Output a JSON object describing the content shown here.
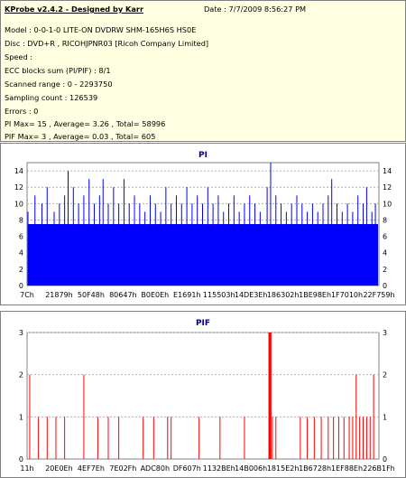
{
  "header": {
    "title": "KProbe v2.4.2 - Designed by Karr",
    "date": "Date : 7/7/2009 8:56:27 PM",
    "lines": [
      "Model : 0-0-1-0 LITE-ON DVDRW SHM-165H6S HS0E",
      "Disc : DVD+R , RICOHJPNR03 [Ricoh Company Limited]",
      "Speed :",
      "ECC blocks sum (PI/PIF) : 8/1",
      "Scanned range : 0 - 2293750",
      "Sampling count : 126539",
      "Errors : 0",
      "PI Max= 15 , Average= 3.26 , Total= 58996",
      "PIF Max= 3 , Average= 0.03 , Total= 605"
    ]
  },
  "colors": {
    "bar": "#0000ff",
    "pif_bar": "#ff0000",
    "title": "#000080",
    "grid": "#808080",
    "info_bg": "#ffffe1"
  },
  "chart_data": [
    {
      "type": "bar",
      "title": "PI",
      "ylim": [
        0,
        15
      ],
      "yticks": [
        "0",
        "2",
        "4",
        "6",
        "8",
        "10",
        "12",
        "14"
      ],
      "xticks": [
        "7Ch",
        "21879h",
        "50F48h",
        "80647h",
        "B0E0Eh",
        "E1691h",
        "115503h",
        "14DE3Eh",
        "186302h",
        "1BE98Eh",
        "1F7010h",
        "22F759h"
      ],
      "grid": true,
      "baseline": 7.5,
      "spikes": [
        {
          "x": 0.0,
          "y": 9
        },
        {
          "x": 0.02,
          "y": 11
        },
        {
          "x": 0.04,
          "y": 10
        },
        {
          "x": 0.055,
          "y": 12
        },
        {
          "x": 0.075,
          "y": 9
        },
        {
          "x": 0.09,
          "y": 10
        },
        {
          "x": 0.105,
          "y": 11
        },
        {
          "x": 0.115,
          "y": 14
        },
        {
          "x": 0.13,
          "y": 12
        },
        {
          "x": 0.145,
          "y": 10
        },
        {
          "x": 0.16,
          "y": 11
        },
        {
          "x": 0.175,
          "y": 13
        },
        {
          "x": 0.19,
          "y": 10
        },
        {
          "x": 0.205,
          "y": 11
        },
        {
          "x": 0.215,
          "y": 13
        },
        {
          "x": 0.23,
          "y": 10
        },
        {
          "x": 0.245,
          "y": 12
        },
        {
          "x": 0.26,
          "y": 10
        },
        {
          "x": 0.275,
          "y": 13
        },
        {
          "x": 0.29,
          "y": 10
        },
        {
          "x": 0.305,
          "y": 11
        },
        {
          "x": 0.32,
          "y": 10
        },
        {
          "x": 0.335,
          "y": 9
        },
        {
          "x": 0.35,
          "y": 11
        },
        {
          "x": 0.365,
          "y": 10
        },
        {
          "x": 0.38,
          "y": 9
        },
        {
          "x": 0.395,
          "y": 12
        },
        {
          "x": 0.41,
          "y": 10
        },
        {
          "x": 0.425,
          "y": 11
        },
        {
          "x": 0.44,
          "y": 10
        },
        {
          "x": 0.455,
          "y": 12
        },
        {
          "x": 0.47,
          "y": 10
        },
        {
          "x": 0.485,
          "y": 11
        },
        {
          "x": 0.5,
          "y": 10
        },
        {
          "x": 0.515,
          "y": 12
        },
        {
          "x": 0.53,
          "y": 10
        },
        {
          "x": 0.545,
          "y": 11
        },
        {
          "x": 0.56,
          "y": 9
        },
        {
          "x": 0.575,
          "y": 10
        },
        {
          "x": 0.59,
          "y": 11
        },
        {
          "x": 0.605,
          "y": 9
        },
        {
          "x": 0.62,
          "y": 10
        },
        {
          "x": 0.635,
          "y": 11
        },
        {
          "x": 0.65,
          "y": 10
        },
        {
          "x": 0.665,
          "y": 9
        },
        {
          "x": 0.685,
          "y": 12
        },
        {
          "x": 0.695,
          "y": 15
        },
        {
          "x": 0.71,
          "y": 11
        },
        {
          "x": 0.725,
          "y": 10
        },
        {
          "x": 0.74,
          "y": 9
        },
        {
          "x": 0.755,
          "y": 10
        },
        {
          "x": 0.77,
          "y": 11
        },
        {
          "x": 0.785,
          "y": 10
        },
        {
          "x": 0.8,
          "y": 9
        },
        {
          "x": 0.815,
          "y": 10
        },
        {
          "x": 0.83,
          "y": 9
        },
        {
          "x": 0.845,
          "y": 10
        },
        {
          "x": 0.86,
          "y": 11
        },
        {
          "x": 0.87,
          "y": 13
        },
        {
          "x": 0.885,
          "y": 10
        },
        {
          "x": 0.9,
          "y": 9
        },
        {
          "x": 0.915,
          "y": 10
        },
        {
          "x": 0.93,
          "y": 9
        },
        {
          "x": 0.945,
          "y": 11
        },
        {
          "x": 0.96,
          "y": 10
        },
        {
          "x": 0.97,
          "y": 12
        },
        {
          "x": 0.985,
          "y": 9
        },
        {
          "x": 0.995,
          "y": 10
        }
      ]
    },
    {
      "type": "bar",
      "title": "PIF",
      "ylim": [
        0,
        3
      ],
      "yticks": [
        "0",
        "1",
        "2",
        "3"
      ],
      "xticks": [
        "11h",
        "20E0Eh",
        "4EF7Eh",
        "7E02Fh",
        "ADC80h",
        "DF607h",
        "1132BEh",
        "14B006h",
        "1815E2h",
        "1B6728h",
        "1EF88Eh",
        "226B1Fh"
      ],
      "grid": true,
      "spikes": [
        {
          "x": 0.005,
          "y": 2
        },
        {
          "x": 0.03,
          "y": 1
        },
        {
          "x": 0.055,
          "y": 1
        },
        {
          "x": 0.08,
          "y": 1
        },
        {
          "x": 0.105,
          "y": 1
        },
        {
          "x": 0.16,
          "y": 2
        },
        {
          "x": 0.2,
          "y": 1
        },
        {
          "x": 0.23,
          "y": 1
        },
        {
          "x": 0.26,
          "y": 1
        },
        {
          "x": 0.33,
          "y": 1
        },
        {
          "x": 0.36,
          "y": 1
        },
        {
          "x": 0.4,
          "y": 1
        },
        {
          "x": 0.41,
          "y": 1
        },
        {
          "x": 0.49,
          "y": 1
        },
        {
          "x": 0.55,
          "y": 1
        },
        {
          "x": 0.62,
          "y": 1
        },
        {
          "x": 0.69,
          "y": 3
        },
        {
          "x": 0.692,
          "y": 3
        },
        {
          "x": 0.694,
          "y": 3
        },
        {
          "x": 0.696,
          "y": 3
        },
        {
          "x": 0.7,
          "y": 1
        },
        {
          "x": 0.71,
          "y": 1
        },
        {
          "x": 0.78,
          "y": 1
        },
        {
          "x": 0.8,
          "y": 1
        },
        {
          "x": 0.82,
          "y": 1
        },
        {
          "x": 0.84,
          "y": 1
        },
        {
          "x": 0.86,
          "y": 1
        },
        {
          "x": 0.875,
          "y": 1
        },
        {
          "x": 0.89,
          "y": 1
        },
        {
          "x": 0.905,
          "y": 1
        },
        {
          "x": 0.92,
          "y": 1
        },
        {
          "x": 0.93,
          "y": 1
        },
        {
          "x": 0.94,
          "y": 2
        },
        {
          "x": 0.95,
          "y": 1
        },
        {
          "x": 0.96,
          "y": 1
        },
        {
          "x": 0.97,
          "y": 1
        },
        {
          "x": 0.98,
          "y": 1
        },
        {
          "x": 0.99,
          "y": 2
        }
      ]
    }
  ]
}
